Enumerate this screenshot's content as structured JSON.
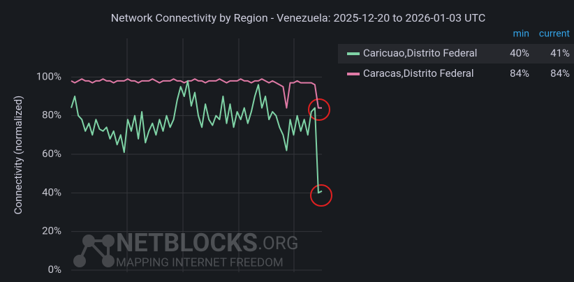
{
  "chart_data": {
    "type": "line",
    "title": "Network Connectivity by Region - Venezuela: 2025-12-20 to 2026-01-03 UTC",
    "y_label": "Connectivity (normalized)",
    "ylim": [
      0,
      120
    ],
    "yticks": [
      {
        "value": 0,
        "label": "0%"
      },
      {
        "value": 20,
        "label": "20%"
      },
      {
        "value": 40,
        "label": "40%"
      },
      {
        "value": 60,
        "label": "60%"
      },
      {
        "value": 80,
        "label": "80%"
      },
      {
        "value": 100,
        "label": "100%"
      }
    ],
    "grid": true,
    "legend_columns": [
      "min",
      "current"
    ],
    "series": [
      {
        "name": "Caricuao,Distrito Federal",
        "color": "#7fd3a6",
        "stats": [
          40,
          41
        ],
        "stats_labels": [
          "40%",
          "41%"
        ],
        "values": [
          84,
          90,
          80,
          78,
          72,
          76,
          70,
          78,
          73,
          72,
          74,
          68,
          72,
          65,
          70,
          61,
          78,
          72,
          80,
          68,
          82,
          66,
          72,
          76,
          70,
          78,
          72,
          80,
          74,
          78,
          88,
          95,
          90,
          98,
          85,
          92,
          80,
          74,
          86,
          78,
          75,
          80,
          78,
          90,
          76,
          86,
          74,
          82,
          78,
          84,
          76,
          82,
          90,
          96,
          84,
          90,
          78,
          82,
          80,
          74,
          70,
          62,
          78,
          70,
          80,
          72,
          78,
          70,
          82,
          84,
          40,
          41
        ]
      },
      {
        "name": "Caracas,Distrito Federal",
        "color": "#e07aa6",
        "stats": [
          84,
          84
        ],
        "stats_labels": [
          "84%",
          "84%"
        ],
        "values": [
          98,
          97,
          98,
          99,
          98,
          98,
          97,
          98,
          98,
          99,
          98,
          98,
          97,
          98,
          98,
          98,
          99,
          98,
          98,
          97,
          98,
          98,
          98,
          99,
          98,
          97,
          98,
          98,
          98,
          99,
          98,
          98,
          97,
          98,
          98,
          99,
          98,
          98,
          97,
          98,
          98,
          98,
          99,
          98,
          97,
          98,
          98,
          98,
          99,
          98,
          98,
          97,
          98,
          98,
          99,
          98,
          97,
          98,
          97,
          96,
          95,
          84,
          97,
          97,
          98,
          97,
          97,
          97,
          97,
          96,
          84,
          84
        ]
      }
    ],
    "watermark": {
      "title": "NETBLOCKS",
      "suffix": ".ORG",
      "tagline": "MAPPING INTERNET FREEDOM"
    }
  }
}
